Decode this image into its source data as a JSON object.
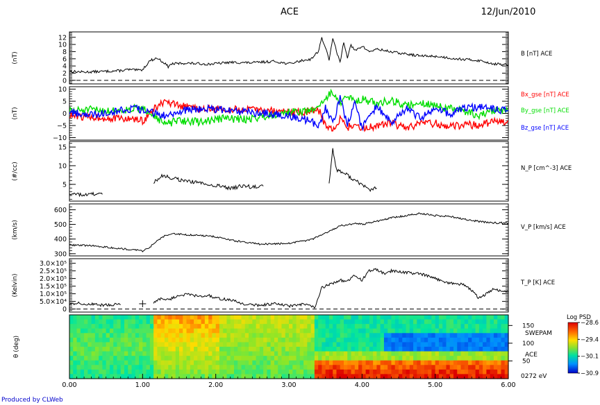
{
  "header": {
    "title": "ACE",
    "date": "12/Jun/2010"
  },
  "footer": {
    "credit": "Produced by CLWeb"
  },
  "chart_data": {
    "type": "line",
    "x_axis": {
      "range": [
        0.0,
        6.0
      ],
      "ticks": [
        0.0,
        1.0,
        2.0,
        3.0,
        4.0,
        5.0,
        6.0
      ],
      "tick_labels": [
        "0.00",
        "1.00",
        "2.00",
        "3.00",
        "4.00",
        "5.00",
        "6.00"
      ]
    },
    "panels": [
      {
        "name": "B",
        "ylabel": "(nT)",
        "ylim": [
          -1,
          13.5
        ],
        "yticks": [
          0,
          2,
          4,
          6,
          8,
          10,
          12
        ],
        "ytick_labels": [
          "0",
          "2",
          "4",
          "6",
          "8",
          "10",
          "12"
        ],
        "zero_line": true,
        "series": [
          {
            "label": "B [nT] ACE",
            "color": "#000000",
            "x": [
              0.0,
              0.2,
              0.5,
              0.7,
              0.8,
              0.95,
              1.0,
              1.1,
              1.2,
              1.3,
              1.35,
              1.4,
              1.6,
              1.9,
              2.2,
              2.5,
              2.8,
              3.0,
              3.2,
              3.3,
              3.4,
              3.45,
              3.5,
              3.55,
              3.6,
              3.65,
              3.7,
              3.75,
              3.8,
              3.85,
              3.9,
              4.0,
              4.1,
              4.2,
              4.5,
              4.8,
              5.0,
              5.3,
              5.6,
              5.8,
              6.0
            ],
            "values": [
              2.5,
              2.3,
              2.5,
              2.7,
              3.0,
              2.8,
              3.0,
              5.5,
              6.2,
              4.8,
              3.8,
              4.6,
              4.8,
              4.5,
              5.0,
              4.9,
              5.3,
              4.6,
              5.6,
              5.9,
              8.0,
              11.8,
              9.2,
              5.5,
              12.0,
              8.0,
              5.0,
              10.8,
              6.5,
              9.8,
              8.2,
              9.5,
              8.0,
              8.7,
              7.6,
              6.8,
              6.7,
              6.0,
              5.5,
              4.6,
              4.3
            ]
          }
        ]
      },
      {
        "name": "Bgse",
        "ylabel": "(nT)",
        "ylim": [
          -11,
          11
        ],
        "yticks": [
          -10,
          -5,
          0,
          5,
          10
        ],
        "ytick_labels": [
          "−10",
          "−5",
          "0",
          "5",
          "10"
        ],
        "series": [
          {
            "label": "Bx_gse [nT] ACE",
            "color": "#ff0000",
            "x": [
              0.0,
              0.3,
              0.6,
              0.9,
              1.0,
              1.2,
              1.3,
              1.5,
              1.8,
              2.1,
              2.4,
              2.7,
              3.0,
              3.2,
              3.4,
              3.5,
              3.6,
              3.7,
              3.8,
              3.9,
              4.0,
              4.2,
              4.4,
              4.6,
              4.8,
              5.0,
              5.2,
              5.4,
              5.6,
              5.8,
              6.0
            ],
            "values": [
              -1.0,
              -1.5,
              -2.0,
              -2.5,
              -3.2,
              3.0,
              4.5,
              3.0,
              2.0,
              1.5,
              1.5,
              1.2,
              0.5,
              0.5,
              2.0,
              -5.0,
              -7.0,
              -2.0,
              -6.0,
              -4.0,
              -6.5,
              -5.0,
              -4.0,
              -6.0,
              -4.5,
              -4.0,
              -5.5,
              -4.5,
              -5.0,
              -3.5,
              -3.0
            ]
          },
          {
            "label": "By_gse [nT] ACE",
            "color": "#00dd00",
            "x": [
              0.0,
              0.3,
              0.6,
              0.9,
              1.1,
              1.3,
              1.5,
              1.8,
              2.1,
              2.4,
              2.7,
              3.0,
              3.3,
              3.4,
              3.5,
              3.6,
              3.7,
              3.8,
              3.9,
              4.0,
              4.2,
              4.4,
              4.6,
              4.8,
              5.0,
              5.2,
              5.4,
              5.6,
              5.8,
              6.0
            ],
            "values": [
              1.0,
              1.5,
              1.0,
              2.0,
              1.0,
              -4.5,
              -3.0,
              -3.5,
              -2.0,
              -2.5,
              -1.0,
              0.5,
              1.0,
              3.0,
              6.0,
              9.0,
              4.0,
              7.0,
              5.0,
              6.0,
              4.0,
              5.5,
              3.0,
              4.5,
              3.0,
              2.0,
              1.0,
              -1.0,
              1.5,
              1.0
            ]
          },
          {
            "label": "Bz_gse [nT] ACE",
            "color": "#0000ff",
            "x": [
              0.0,
              0.3,
              0.6,
              0.9,
              1.1,
              1.3,
              1.5,
              1.8,
              2.1,
              2.4,
              2.7,
              3.0,
              3.3,
              3.4,
              3.5,
              3.6,
              3.7,
              3.8,
              3.9,
              4.0,
              4.2,
              4.4,
              4.6,
              4.8,
              5.0,
              5.2,
              5.4,
              5.6,
              5.8,
              6.0
            ],
            "values": [
              0.5,
              -0.5,
              1.0,
              2.0,
              0.5,
              -1.0,
              1.0,
              2.0,
              1.5,
              0.5,
              0.0,
              -1.0,
              -3.0,
              -6.0,
              2.0,
              -4.0,
              6.0,
              -5.0,
              4.0,
              -6.0,
              3.0,
              -4.0,
              2.0,
              -2.0,
              1.5,
              0.0,
              2.0,
              2.5,
              2.0,
              1.0
            ]
          }
        ]
      },
      {
        "name": "N_P",
        "ylabel": "(#/cc)",
        "ylim": [
          0.5,
          16.5
        ],
        "yticks": [
          5,
          10,
          15
        ],
        "ytick_labels": [
          "5",
          "10",
          "15"
        ],
        "series": [
          {
            "label": "N_P [cm^-3] ACE",
            "color": "#000000",
            "segments": [
              {
                "x": [
                  0.0,
                  0.1,
                  0.2,
                  0.3,
                  0.45
                ],
                "values": [
                  2.7,
                  2.3,
                  2.2,
                  2.4,
                  2.3
                ]
              },
              {
                "x": [
                  1.15,
                  1.25,
                  1.35,
                  1.45,
                  1.6,
                  1.8,
                  2.0,
                  2.2,
                  2.35,
                  2.5,
                  2.65
                ],
                "values": [
                  5.5,
                  7.2,
                  7.0,
                  6.5,
                  5.9,
                  5.3,
                  4.8,
                  3.8,
                  4.6,
                  4.3,
                  4.5
                ]
              },
              {
                "x": [
                  3.55,
                  3.6,
                  3.65,
                  3.7,
                  3.8,
                  3.9,
                  4.0,
                  4.1,
                  4.2
                ],
                "values": [
                  5.5,
                  14.5,
                  9.0,
                  8.5,
                  7.5,
                  6.0,
                  5.0,
                  3.5,
                  4.0
                ]
              }
            ]
          }
        ]
      },
      {
        "name": "V_P",
        "ylabel": "(km/s)",
        "ylim": [
          285,
          640
        ],
        "yticks": [
          300,
          400,
          500,
          600
        ],
        "ytick_labels": [
          "300",
          "400",
          "500",
          "600"
        ],
        "series": [
          {
            "label": "V_P [km/s] ACE",
            "color": "#000000",
            "x": [
              0.0,
              0.3,
              0.6,
              0.9,
              1.0,
              1.1,
              1.2,
              1.3,
              1.4,
              1.6,
              1.8,
              2.0,
              2.3,
              2.6,
              3.0,
              3.3,
              3.5,
              3.7,
              3.9,
              4.0,
              4.2,
              4.4,
              4.6,
              4.8,
              5.0,
              5.2,
              5.4,
              5.6,
              5.8,
              6.0
            ],
            "values": [
              360,
              355,
              340,
              325,
              318,
              345,
              390,
              420,
              440,
              430,
              425,
              415,
              385,
              365,
              370,
              395,
              440,
              490,
              505,
              500,
              520,
              545,
              560,
              575,
              560,
              555,
              535,
              520,
              510,
              510
            ]
          }
        ]
      },
      {
        "name": "T_P",
        "ylabel": "(Kelvin)",
        "ylim": [
          -20000,
          330000
        ],
        "yticks": [
          0,
          50000,
          100000,
          150000,
          200000,
          250000,
          300000
        ],
        "ytick_labels": [
          "0",
          "5.0×10⁴",
          "1.0×10⁵",
          "1.5×10⁵",
          "2.0×10⁵",
          "2.5×10⁵",
          "3.0×10⁵"
        ],
        "zero_line": true,
        "series": [
          {
            "label": "T_P [K] ACE",
            "color": "#000000",
            "segments": [
              {
                "x": [
                  0.0,
                  0.1,
                  0.2,
                  0.3,
                  0.45,
                  0.6,
                  0.7
                ],
                "values": [
                  30000,
                  40000,
                  30000,
                  35000,
                  25000,
                  30000,
                  28000
                ]
              },
              {
                "x": [
                  1.15,
                  1.25,
                  1.35,
                  1.5,
                  1.6,
                  1.7,
                  1.8,
                  1.9,
                  2.0,
                  2.2,
                  2.4,
                  2.6,
                  2.8,
                  3.0,
                  3.2,
                  3.3,
                  3.35,
                  3.45,
                  3.55,
                  3.7,
                  3.8,
                  3.9,
                  4.0,
                  4.1,
                  4.2,
                  4.3,
                  4.4,
                  4.6,
                  4.8,
                  5.0,
                  5.2,
                  5.4,
                  5.5,
                  5.6,
                  5.8,
                  6.0
                ],
                "values": [
                  40000,
                  70000,
                  60000,
                  90000,
                  95000,
                  90000,
                  80000,
                  90000,
                  70000,
                  60000,
                  30000,
                  25000,
                  35000,
                  20000,
                  30000,
                  25000,
                  0,
                  140000,
                  160000,
                  190000,
                  180000,
                  220000,
                  190000,
                  250000,
                  260000,
                  230000,
                  250000,
                  240000,
                  230000,
                  200000,
                  170000,
                  160000,
                  120000,
                  70000,
                  130000,
                  110000
                ]
              }
            ]
          }
        ]
      },
      {
        "name": "theta",
        "type": "heatmap",
        "ylabel": "θ (deg)",
        "ylim": [
          0,
          180
        ],
        "yticks": [
          50,
          100,
          150
        ],
        "ytick_labels": [
          "50",
          "100",
          "150"
        ],
        "side_labels": [
          "SWEPAM",
          "ACE",
          "0272 eV"
        ],
        "colorbar": {
          "title": "Log PSD",
          "range": [
            -30.9,
            -28.6
          ],
          "tick_labels": [
            "−28.6",
            "−29.4",
            "−30.1",
            "−30.9"
          ]
        }
      }
    ]
  }
}
